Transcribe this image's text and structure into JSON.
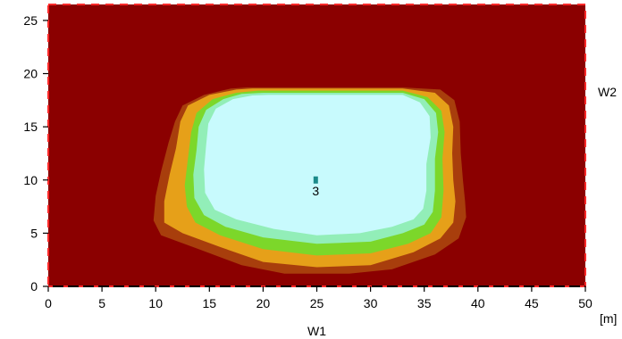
{
  "chart_data": {
    "type": "heatmap",
    "title": "",
    "xlabel": "W1",
    "ylabel": "",
    "side_label": "W2",
    "unit_label": "[m]",
    "xlim": [
      0,
      50
    ],
    "ylim": [
      0,
      26.5
    ],
    "x_ticks": [
      "0",
      "5",
      "10",
      "15",
      "20",
      "25",
      "30",
      "35",
      "40",
      "45",
      "50"
    ],
    "y_ticks": [
      "0",
      "5",
      "10",
      "15",
      "20",
      "25"
    ],
    "background_color": "#8b0000",
    "grid": false,
    "legend": "none",
    "contour_levels": [
      {
        "color": "#a83e0c",
        "polygon": [
          [
            18.5,
            18.7
          ],
          [
            33,
            18.7
          ],
          [
            36.5,
            18.5
          ],
          [
            37.8,
            17.5
          ],
          [
            38.3,
            15.5
          ],
          [
            38.4,
            12.5
          ],
          [
            38.6,
            10
          ],
          [
            38.8,
            8
          ],
          [
            38.9,
            6.5
          ],
          [
            38.2,
            4.5
          ],
          [
            36,
            3
          ],
          [
            32,
            1.6
          ],
          [
            28,
            1.2
          ],
          [
            22,
            1.2
          ],
          [
            18,
            2
          ],
          [
            14,
            3.5
          ],
          [
            10.5,
            4.8
          ],
          [
            9.8,
            6.2
          ],
          [
            10,
            8.5
          ],
          [
            10.5,
            10.8
          ],
          [
            11.2,
            13.5
          ],
          [
            11.8,
            15.5
          ],
          [
            12.5,
            17
          ],
          [
            14.5,
            18
          ],
          [
            17,
            18.6
          ]
        ]
      },
      {
        "color": "#e6a019",
        "polygon": [
          [
            19,
            18.6
          ],
          [
            33,
            18.6
          ],
          [
            36,
            18.2
          ],
          [
            37.3,
            17
          ],
          [
            37.7,
            15
          ],
          [
            37.6,
            12.5
          ],
          [
            37.7,
            10
          ],
          [
            37.9,
            8
          ],
          [
            37.7,
            6
          ],
          [
            36.5,
            4.5
          ],
          [
            34,
            3.2
          ],
          [
            30,
            2
          ],
          [
            25,
            1.8
          ],
          [
            20,
            2.3
          ],
          [
            16,
            3.7
          ],
          [
            12.5,
            5
          ],
          [
            10.8,
            6
          ],
          [
            10.8,
            8
          ],
          [
            11.3,
            10.5
          ],
          [
            11.9,
            13
          ],
          [
            12.3,
            15.5
          ],
          [
            13,
            17
          ],
          [
            15,
            18
          ],
          [
            17.5,
            18.5
          ]
        ]
      },
      {
        "color": "#7cd72a",
        "polygon": [
          [
            19.5,
            18.4
          ],
          [
            33,
            18.4
          ],
          [
            35.3,
            17.8
          ],
          [
            36.6,
            16.5
          ],
          [
            36.9,
            14.5
          ],
          [
            36.7,
            12
          ],
          [
            36.8,
            9
          ],
          [
            36.6,
            6.5
          ],
          [
            35.6,
            5
          ],
          [
            33.5,
            4
          ],
          [
            30,
            3.1
          ],
          [
            25,
            2.9
          ],
          [
            20,
            3.5
          ],
          [
            16,
            4.8
          ],
          [
            13.7,
            6
          ],
          [
            12.9,
            7.5
          ],
          [
            12.7,
            9.5
          ],
          [
            13,
            12
          ],
          [
            13.3,
            14.5
          ],
          [
            13.8,
            16.3
          ],
          [
            15.3,
            17.6
          ],
          [
            17.5,
            18.2
          ]
        ]
      },
      {
        "color": "#92eeb8",
        "polygon": [
          [
            20,
            18.2
          ],
          [
            33,
            18.2
          ],
          [
            35,
            17.6
          ],
          [
            36.1,
            16.3
          ],
          [
            36.3,
            14.5
          ],
          [
            36,
            12
          ],
          [
            36,
            9
          ],
          [
            35.8,
            7
          ],
          [
            35,
            5.8
          ],
          [
            33,
            5
          ],
          [
            30,
            4.2
          ],
          [
            25,
            4
          ],
          [
            20,
            4.6
          ],
          [
            16.5,
            5.6
          ],
          [
            14.5,
            6.7
          ],
          [
            13.6,
            8.3
          ],
          [
            13.5,
            10.5
          ],
          [
            13.8,
            12.8
          ],
          [
            14,
            15
          ],
          [
            14.7,
            16.6
          ],
          [
            16.3,
            17.6
          ],
          [
            18,
            18.1
          ]
        ]
      },
      {
        "color": "#c8fafd",
        "polygon": [
          [
            20.5,
            18
          ],
          [
            33,
            18
          ],
          [
            34.6,
            17.3
          ],
          [
            35.5,
            16
          ],
          [
            35.6,
            14
          ],
          [
            35.2,
            11.5
          ],
          [
            35.2,
            9
          ],
          [
            34.9,
            7.3
          ],
          [
            34,
            6.3
          ],
          [
            32,
            5.6
          ],
          [
            29,
            5
          ],
          [
            25,
            4.8
          ],
          [
            21,
            5.4
          ],
          [
            17.5,
            6.3
          ],
          [
            15.5,
            7.2
          ],
          [
            14.6,
            8.8
          ],
          [
            14.5,
            11
          ],
          [
            14.7,
            13.3
          ],
          [
            14.9,
            15.3
          ],
          [
            15.6,
            16.7
          ],
          [
            17.2,
            17.6
          ],
          [
            19,
            17.95
          ]
        ]
      }
    ],
    "points": [
      {
        "label": "3",
        "x": 24.9,
        "y": 10,
        "color": "#1a8a8a"
      }
    ]
  }
}
